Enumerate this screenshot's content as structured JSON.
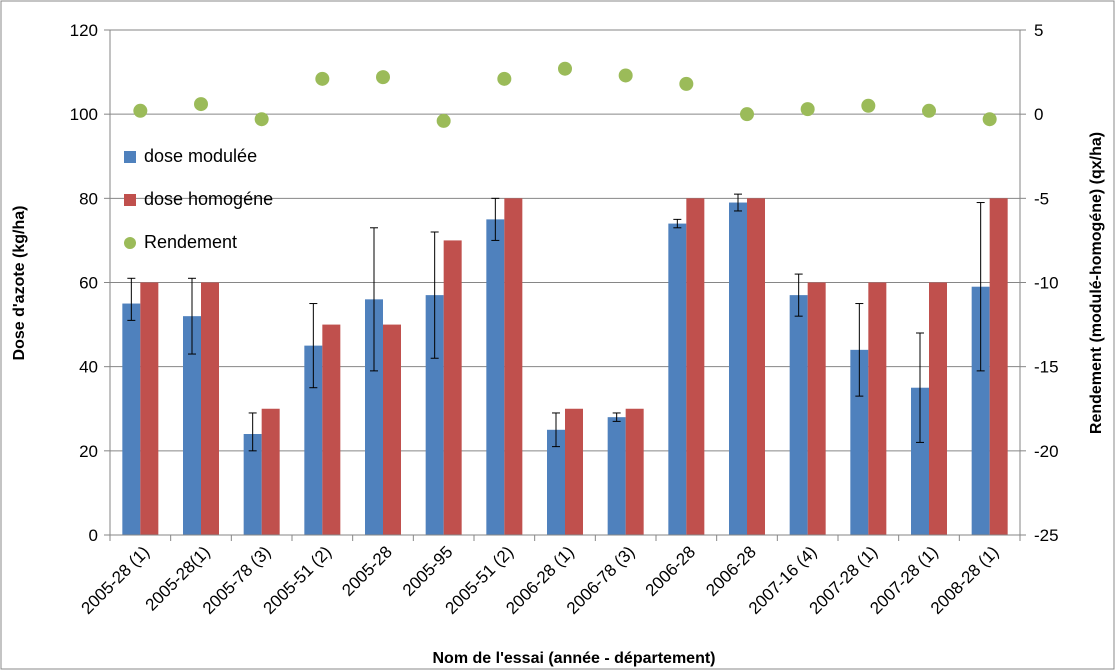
{
  "chart_data": {
    "type": "bar",
    "title": "",
    "xlabel": "Nom de l'essai (année - département)",
    "ylabel": "Dose d'azote (kg/ha)",
    "y2label": "Rendement (modulé-homogéne) (qx/ha)",
    "ylim": [
      0,
      120
    ],
    "y2lim": [
      -25,
      5
    ],
    "yticks": [
      0,
      20,
      40,
      60,
      80,
      100,
      120
    ],
    "y2ticks": [
      -25,
      -20,
      -15,
      -10,
      -5,
      0,
      5
    ],
    "grid": "horizontal",
    "legend_position": "left",
    "categories": [
      "2005-28 (1)",
      "2005-28(1)",
      "2005-78 (3)",
      "2005-51 (2)",
      "2005-28",
      "2005-95",
      "2005-51 (2)",
      "2006-28 (1)",
      "2006-78 (3)",
      "2006-28",
      "2006-28",
      "2007-16 (4)",
      "2007-28 (1)",
      "2007-28 (1)",
      "2008-28 (1)"
    ],
    "series": [
      {
        "name": "dose modulée",
        "kind": "bar",
        "axis": "left",
        "color": "#4F81BD",
        "values": [
          55,
          52,
          24,
          45,
          56,
          57,
          75,
          25,
          28,
          74,
          79,
          57,
          44,
          35,
          59
        ],
        "error_low": [
          51,
          43,
          20,
          35,
          39,
          42,
          70,
          21,
          27,
          73,
          77,
          52,
          33,
          22,
          39
        ],
        "error_high": [
          61,
          61,
          29,
          55,
          73,
          72,
          80,
          29,
          29,
          75,
          81,
          62,
          55,
          48,
          79
        ]
      },
      {
        "name": "dose homogéne",
        "kind": "bar",
        "axis": "left",
        "color": "#C0504D",
        "values": [
          60,
          60,
          30,
          50,
          50,
          70,
          80,
          30,
          30,
          80,
          80,
          60,
          60,
          60,
          80
        ]
      },
      {
        "name": "Rendement",
        "kind": "scatter",
        "axis": "right",
        "color": "#9BBB59",
        "values": [
          0.2,
          0.6,
          -0.3,
          2.1,
          2.2,
          -0.4,
          2.1,
          2.7,
          2.3,
          1.8,
          0.0,
          0.3,
          0.5,
          0.2,
          -0.3
        ]
      }
    ]
  }
}
